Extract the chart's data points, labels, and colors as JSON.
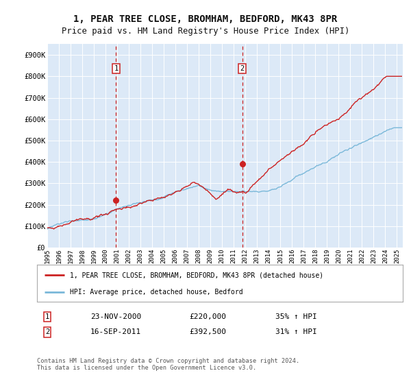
{
  "title": "1, PEAR TREE CLOSE, BROMHAM, BEDFORD, MK43 8PR",
  "subtitle": "Price paid vs. HM Land Registry's House Price Index (HPI)",
  "ylabel_ticks": [
    "£0",
    "£100K",
    "£200K",
    "£300K",
    "£400K",
    "£500K",
    "£600K",
    "£700K",
    "£800K",
    "£900K"
  ],
  "ytick_vals": [
    0,
    100000,
    200000,
    300000,
    400000,
    500000,
    600000,
    700000,
    800000,
    900000
  ],
  "ylim": [
    0,
    950000
  ],
  "xlim_start": 1995.0,
  "xlim_end": 2025.5,
  "background_color": "#ffffff",
  "plot_bg_color": "#dce9f7",
  "grid_color": "#ffffff",
  "sale1": {
    "date_num": 2000.9,
    "price": 220000,
    "label": "1",
    "date_str": "23-NOV-2000",
    "pct": "35%"
  },
  "sale2": {
    "date_num": 2011.73,
    "price": 392500,
    "label": "2",
    "date_str": "16-SEP-2011",
    "pct": "31%"
  },
  "legend_line1": "1, PEAR TREE CLOSE, BROMHAM, BEDFORD, MK43 8PR (detached house)",
  "legend_line2": "HPI: Average price, detached house, Bedford",
  "footer": "Contains HM Land Registry data © Crown copyright and database right 2024.\nThis data is licensed under the Open Government Licence v3.0.",
  "hpi_color": "#7ab8d9",
  "price_color": "#cc2222",
  "title_fontsize": 10,
  "subtitle_fontsize": 9
}
